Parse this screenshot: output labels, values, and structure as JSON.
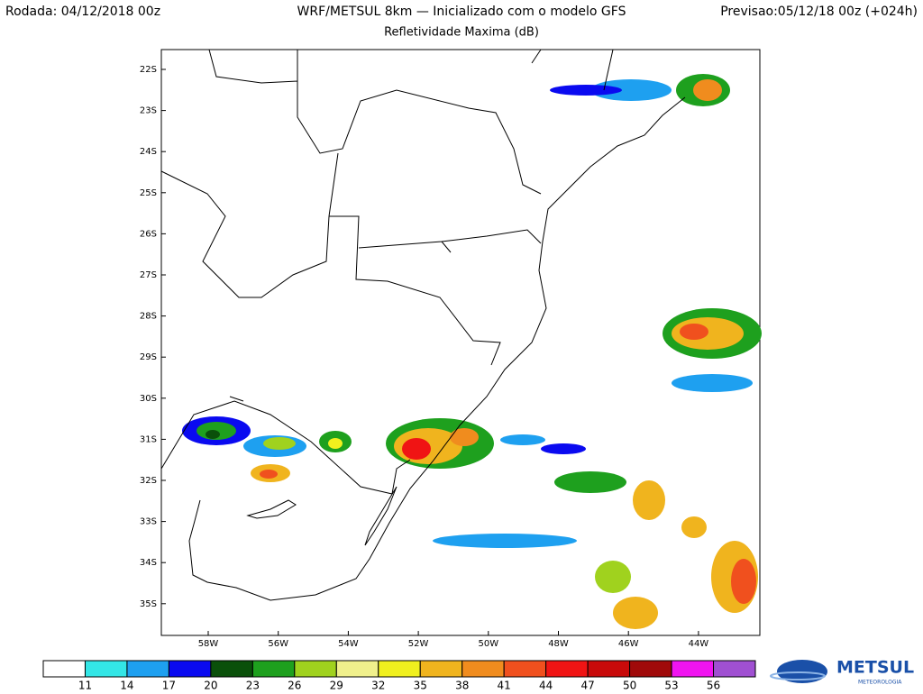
{
  "header": {
    "left": "Rodada: 04/12/2018 00z",
    "center": "WRF/METSUL 8km — Inicializado com o modelo GFS",
    "right": "Previsao:05/12/18 00z (+024h)",
    "subtitle": "Refletividade Maxima (dB)"
  },
  "map": {
    "lat_labels": [
      "22S",
      "23S",
      "24S",
      "25S",
      "26S",
      "27S",
      "28S",
      "29S",
      "30S",
      "31S",
      "32S",
      "33S",
      "34S",
      "35S"
    ],
    "lon_labels": [
      "58W",
      "56W",
      "54W",
      "52W",
      "50W",
      "48W",
      "46W",
      "44W"
    ]
  },
  "colorbar": {
    "labels": [
      11,
      14,
      17,
      20,
      23,
      26,
      29,
      32,
      35,
      38,
      41,
      44,
      47,
      50,
      53,
      56
    ],
    "colors": [
      "#ffffff",
      "#33e6e6",
      "#1ea0f0",
      "#0a0af0",
      "#0a500a",
      "#1ea01e",
      "#a0d21e",
      "#f0f08c",
      "#f0f01e",
      "#f0b41e",
      "#f08c1e",
      "#f0501e",
      "#f01414",
      "#c80a0a",
      "#a00a0a",
      "#f014f0",
      "#a050d2"
    ]
  },
  "logo": {
    "name": "METSUL",
    "tagline": "METEOROLOGIA"
  }
}
